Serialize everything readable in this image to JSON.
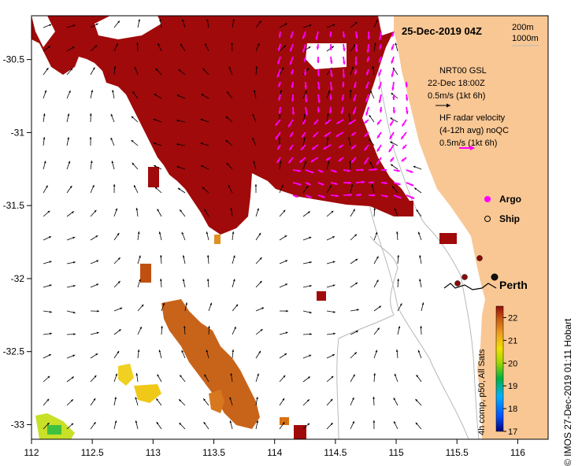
{
  "map": {
    "date_title": "25-Dec-2019 04Z",
    "depth_contours": [
      "200m",
      "1000m"
    ],
    "gsl_legend": [
      "NRT00 GSL",
      "22-Dec 18:00Z",
      "0.5m/s (1kt 6h)"
    ],
    "radar_legend": [
      "HF radar velocity",
      "(4-12h avg) noQC",
      "0.5m/s (1kt 6h)"
    ],
    "markers": {
      "argo": "Argo",
      "ship": "Ship"
    },
    "city": "Perth",
    "credit": "© IMOS 27-Dec-2019 01:11 Hobart",
    "colorbar": {
      "label": "4h comp, p50, All Sats",
      "ticks": [
        "22",
        "21",
        "20",
        "19",
        "18",
        "17"
      ],
      "range": [
        17,
        22.5
      ]
    },
    "axes": {
      "lon_ticks": [
        "112",
        "112.5",
        "113",
        "113.5",
        "114",
        "114.5",
        "115",
        "115.5",
        "116"
      ],
      "lat_ticks": [
        "-30.5",
        "-31",
        "-31.5",
        "-32",
        "-32.5",
        "-33"
      ]
    },
    "colors": {
      "land": "#f9c794",
      "sst_hot": "#a00a0a",
      "radar_arrow": "#ff00ff",
      "gsl_arrow": "#000000",
      "contour": "#b8b8b8"
    }
  }
}
